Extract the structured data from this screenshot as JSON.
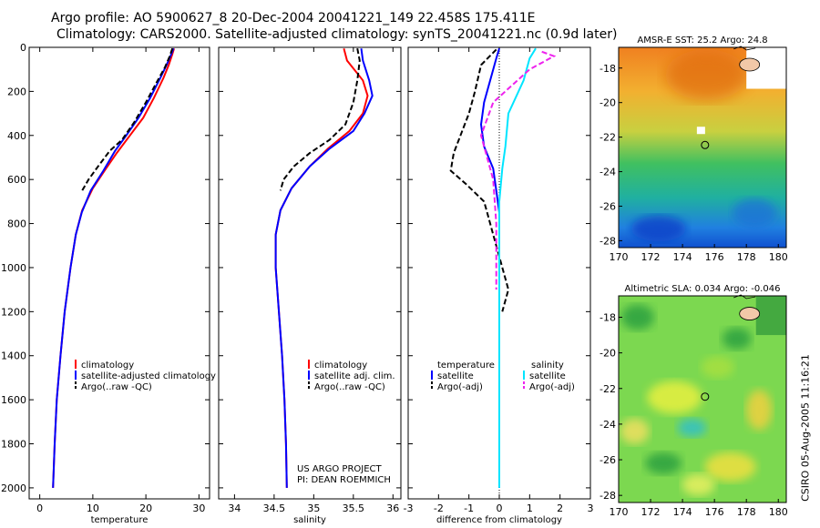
{
  "header": {
    "line1": "Argo profile: AO 5900627_8 20-Dec-2004 20041221_149 22.458S 175.411E",
    "line2": "Climatology: CARS2000. Satellite-adjusted climatology: synTS_20041221.nc (0.9d later)"
  },
  "stamp": "CSIRO 05-Aug-2005 11:16:21",
  "colors": {
    "climatology": "#ff0000",
    "satellite": "#0000ff",
    "argo": "#000000",
    "sal_satellite": "#00e5ff",
    "sal_argo": "#ee22ee"
  },
  "chart_data": [
    {
      "type": "line",
      "id": "temperature-profile",
      "xlabel": "temperature",
      "xlim": [
        -2,
        32
      ],
      "xticks": [
        0,
        10,
        20,
        30
      ],
      "ylim": [
        2050,
        0
      ],
      "yticks": [
        0,
        200,
        400,
        600,
        800,
        1000,
        1200,
        1400,
        1600,
        1800,
        2000
      ],
      "legend": {
        "placement": "lower-right",
        "entries": [
          "climatology",
          "satellite-adjusted climatology",
          "Argo(..raw -QC)"
        ]
      },
      "series": [
        {
          "name": "climatology",
          "color": "red",
          "dash": "solid",
          "points": [
            [
              25.3,
              5
            ],
            [
              25.0,
              30
            ],
            [
              24.3,
              80
            ],
            [
              23.3,
              140
            ],
            [
              21.5,
              230
            ],
            [
              19.5,
              320
            ],
            [
              17.0,
              400
            ],
            [
              14.5,
              480
            ],
            [
              12.5,
              550
            ],
            [
              10.0,
              640
            ],
            [
              8.0,
              740
            ],
            [
              6.8,
              850
            ],
            [
              5.8,
              1000
            ],
            [
              4.7,
              1200
            ],
            [
              3.9,
              1400
            ],
            [
              3.2,
              1600
            ],
            [
              2.8,
              1800
            ],
            [
              2.5,
              2000
            ]
          ]
        },
        {
          "name": "satellite-adjusted climatology",
          "color": "blue",
          "dash": "solid",
          "points": [
            [
              25.2,
              5
            ],
            [
              24.8,
              30
            ],
            [
              23.9,
              80
            ],
            [
              22.7,
              140
            ],
            [
              20.8,
              230
            ],
            [
              18.6,
              320
            ],
            [
              16.3,
              400
            ],
            [
              14.2,
              470
            ],
            [
              12.0,
              560
            ],
            [
              9.6,
              650
            ],
            [
              7.9,
              750
            ],
            [
              6.8,
              850
            ],
            [
              5.8,
              1000
            ],
            [
              4.7,
              1200
            ],
            [
              3.9,
              1400
            ],
            [
              3.2,
              1600
            ],
            [
              2.8,
              1800
            ],
            [
              2.5,
              2000
            ]
          ]
        },
        {
          "name": "Argo(..raw -QC)",
          "color": "black",
          "dash": "dashed",
          "points": [
            [
              25.0,
              5
            ],
            [
              24.5,
              40
            ],
            [
              23.6,
              90
            ],
            [
              22.0,
              160
            ],
            [
              20.0,
              250
            ],
            [
              17.8,
              340
            ],
            [
              15.5,
              420
            ],
            [
              13.2,
              470
            ],
            [
              11.0,
              540
            ],
            [
              9.2,
              600
            ],
            [
              8.0,
              650
            ]
          ]
        }
      ]
    },
    {
      "type": "line",
      "id": "salinity-profile",
      "xlabel": "salinity",
      "xlim": [
        33.8,
        36.1
      ],
      "xticks": [
        34,
        34.5,
        35,
        35.5,
        36
      ],
      "ylim": [
        2050,
        0
      ],
      "legend": {
        "placement": "lower-right",
        "entries": [
          "climatology",
          "satellite adj. clim.",
          "Argo(..raw -QC)"
        ]
      },
      "annotations": [
        "US ARGO PROJECT",
        "PI: DEAN ROEMMICH"
      ],
      "series": [
        {
          "name": "climatology",
          "color": "red",
          "dash": "solid",
          "points": [
            [
              35.38,
              5
            ],
            [
              35.42,
              60
            ],
            [
              35.62,
              150
            ],
            [
              35.68,
              220
            ],
            [
              35.62,
              300
            ],
            [
              35.45,
              380
            ],
            [
              35.18,
              460
            ],
            [
              34.95,
              540
            ],
            [
              34.72,
              640
            ],
            [
              34.58,
              740
            ],
            [
              34.52,
              850
            ],
            [
              34.52,
              1000
            ],
            [
              34.56,
              1200
            ],
            [
              34.6,
              1400
            ],
            [
              34.63,
              1600
            ],
            [
              34.65,
              1800
            ],
            [
              34.66,
              2000
            ]
          ]
        },
        {
          "name": "satellite adj. clim.",
          "color": "blue",
          "dash": "solid",
          "points": [
            [
              35.6,
              5
            ],
            [
              35.62,
              60
            ],
            [
              35.7,
              150
            ],
            [
              35.74,
              220
            ],
            [
              35.64,
              300
            ],
            [
              35.5,
              380
            ],
            [
              35.2,
              460
            ],
            [
              34.95,
              540
            ],
            [
              34.72,
              640
            ],
            [
              34.58,
              740
            ],
            [
              34.52,
              850
            ],
            [
              34.52,
              1000
            ],
            [
              34.56,
              1200
            ],
            [
              34.6,
              1400
            ],
            [
              34.63,
              1600
            ],
            [
              34.65,
              1800
            ],
            [
              34.66,
              2000
            ]
          ]
        },
        {
          "name": "Argo(..raw -QC)",
          "color": "black",
          "dash": "dashed",
          "points": [
            [
              35.55,
              5
            ],
            [
              35.58,
              60
            ],
            [
              35.55,
              150
            ],
            [
              35.5,
              250
            ],
            [
              35.4,
              350
            ],
            [
              35.2,
              420
            ],
            [
              34.95,
              480
            ],
            [
              34.75,
              540
            ],
            [
              34.62,
              600
            ],
            [
              34.58,
              650
            ]
          ]
        }
      ]
    },
    {
      "type": "line",
      "id": "difference-profile",
      "xlabel": "difference from climatology",
      "xlim": [
        -3,
        3
      ],
      "xticks": [
        -3,
        -2,
        -1,
        0,
        1,
        2,
        3
      ],
      "ylim": [
        2050,
        0
      ],
      "zero_line": "dotted",
      "legend": {
        "placement": "lower-right",
        "entries": [
          {
            "group_label": "temperature",
            "items": [
              "satellite",
              "Argo(-adj)"
            ]
          },
          {
            "group_label": "salinity",
            "items": [
              "satellite",
              "Argo(-adj)"
            ]
          }
        ]
      },
      "series": [
        {
          "name": "temperature satellite",
          "color": "blue",
          "dash": "solid",
          "points": [
            [
              0.0,
              5
            ],
            [
              -0.1,
              50
            ],
            [
              -0.3,
              150
            ],
            [
              -0.5,
              250
            ],
            [
              -0.6,
              350
            ],
            [
              -0.5,
              450
            ],
            [
              -0.2,
              550
            ],
            [
              -0.1,
              650
            ],
            [
              0.0,
              750
            ],
            [
              0.0,
              2000
            ]
          ]
        },
        {
          "name": "temperature Argo(-adj)",
          "color": "black",
          "dash": "dashed",
          "points": [
            [
              -0.1,
              10
            ],
            [
              -0.6,
              80
            ],
            [
              -0.8,
              200
            ],
            [
              -1.0,
              300
            ],
            [
              -1.5,
              480
            ],
            [
              -1.6,
              560
            ],
            [
              -1.1,
              620
            ],
            [
              -0.5,
              700
            ],
            [
              -0.4,
              750
            ],
            [
              -0.2,
              850
            ],
            [
              0.0,
              950
            ],
            [
              0.3,
              1100
            ],
            [
              0.1,
              1200
            ]
          ]
        },
        {
          "name": "salinity satellite",
          "color": "cyan",
          "dash": "solid",
          "points": [
            [
              1.2,
              5
            ],
            [
              1.0,
              50
            ],
            [
              0.8,
              150
            ],
            [
              0.3,
              300
            ],
            [
              0.2,
              450
            ],
            [
              0.1,
              550
            ],
            [
              0.0,
              700
            ],
            [
              0.0,
              2000
            ]
          ]
        },
        {
          "name": "salinity Argo(-adj)",
          "color": "magenta",
          "dash": "dashed",
          "points": [
            [
              1.4,
              20
            ],
            [
              1.8,
              40
            ],
            [
              1.0,
              100
            ],
            [
              -0.2,
              250
            ],
            [
              -0.6,
              400
            ],
            [
              -0.2,
              600
            ],
            [
              -0.1,
              800
            ],
            [
              -0.1,
              1100
            ]
          ]
        }
      ]
    },
    {
      "type": "heatmap",
      "id": "sst-map",
      "title": "AMSR-E SST: 25.2 Argo: 24.8",
      "xlim": [
        170,
        180.5
      ],
      "ylim": [
        -28.4,
        -16.8
      ],
      "xticks": [
        170,
        172,
        174,
        176,
        178,
        180
      ],
      "yticks": [
        -18,
        -20,
        -22,
        -24,
        -26,
        -28
      ],
      "marker": {
        "lon": 175.411,
        "lat": -22.458
      }
    },
    {
      "type": "heatmap",
      "id": "sla-map",
      "title": "Altimetric SLA: 0.034 Argo: -0.046",
      "xlim": [
        170,
        180.5
      ],
      "ylim": [
        -28.4,
        -16.8
      ],
      "xticks": [
        170,
        172,
        174,
        176,
        178,
        180
      ],
      "yticks": [
        -18,
        -20,
        -22,
        -24,
        -26,
        -28
      ],
      "marker": {
        "lon": 175.411,
        "lat": -22.458
      }
    }
  ]
}
